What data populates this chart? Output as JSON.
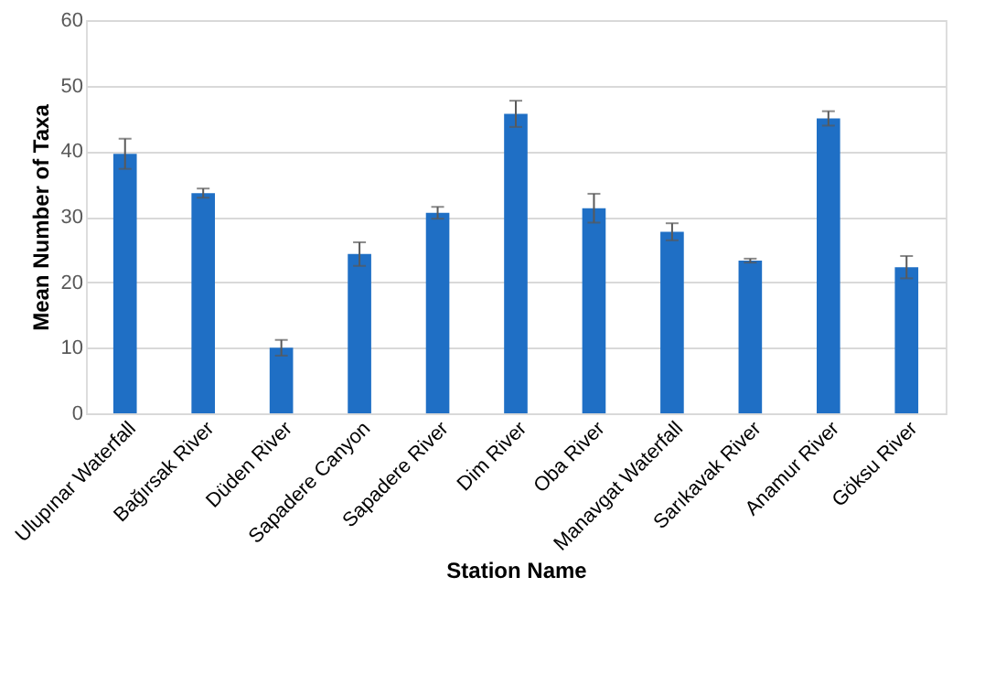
{
  "chart_data": {
    "type": "bar",
    "xlabel": "Station Name",
    "ylabel": "Mean Number of Taxa",
    "categories": [
      "Ulupınar Waterfall",
      "Bağırsak River",
      "Düden River",
      "Sapadere Canyon",
      "Sapadere River",
      "Dim River",
      "Oba River",
      "Manavgat Waterfall",
      "Sarıkavak River",
      "Anamur River",
      "Göksu River"
    ],
    "values": [
      39.6,
      33.6,
      10.0,
      24.3,
      30.6,
      45.7,
      31.3,
      27.7,
      23.3,
      45.0,
      22.3
    ],
    "errors": [
      2.3,
      0.7,
      1.2,
      1.8,
      0.9,
      2.0,
      2.2,
      1.3,
      0.3,
      1.1,
      1.7
    ],
    "color": "#1f6fc5",
    "ylim": [
      0,
      60
    ],
    "yticks": [
      0,
      10,
      20,
      30,
      40,
      50,
      60
    ],
    "grid": "y"
  }
}
